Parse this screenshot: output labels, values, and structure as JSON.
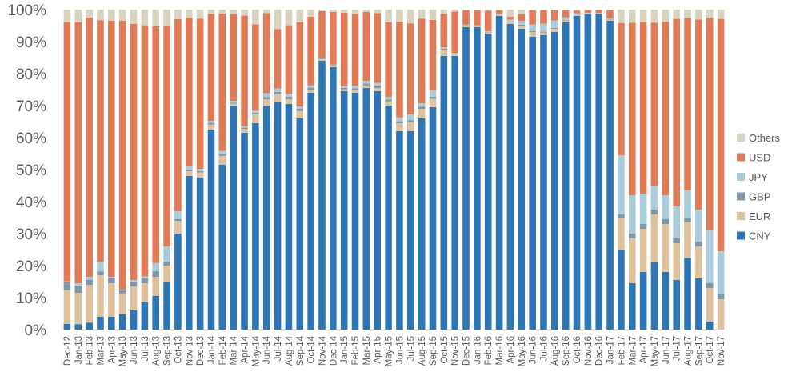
{
  "chart_data": {
    "type": "bar",
    "stacked": true,
    "percent": true,
    "ylim": [
      0,
      100
    ],
    "yticks": [
      "0%",
      "10%",
      "20%",
      "30%",
      "40%",
      "50%",
      "60%",
      "70%",
      "80%",
      "90%",
      "100%"
    ],
    "legend_position": "right",
    "grid": false,
    "categories": [
      "Dec-12",
      "Jan-13",
      "Feb-13",
      "Mar-13",
      "Apr-13",
      "May-13",
      "Jun-13",
      "Jul-13",
      "Aug-13",
      "Sep-13",
      "Oct-13",
      "Nov-13",
      "Dec-13",
      "Jan-14",
      "Feb-14",
      "Mar-14",
      "Apr-14",
      "May-14",
      "Jun-14",
      "Jul-14",
      "Aug-14",
      "Sep-14",
      "Oct-14",
      "Nov-14",
      "Dec-14",
      "Jan-15",
      "Feb-15",
      "Mar-15",
      "Apr-15",
      "May-15",
      "Jun-15",
      "Jul-15",
      "Aug-15",
      "Sep-15",
      "Oct-15",
      "Nov-15",
      "Dec-15",
      "Jan-16",
      "Feb-16",
      "Mar-16",
      "Apr-16",
      "May-16",
      "Jun-16",
      "Jul-16",
      "Aug-16",
      "Sep-16",
      "Oct-16",
      "Nov-16",
      "Dec-16",
      "Jan-17",
      "Feb-17",
      "Mar-17",
      "Apr-17",
      "May-17",
      "Jun-17",
      "Jul-17",
      "Aug-17",
      "Sep-17",
      "Oct-17",
      "Nov-17"
    ],
    "series": [
      {
        "name": "CNY",
        "color": "#2e75b6",
        "values": [
          1.8,
          1.7,
          2.2,
          4,
          4,
          4.8,
          6,
          8.5,
          10.5,
          15,
          30,
          48,
          47.5,
          62.5,
          51.5,
          70,
          61.5,
          64.5,
          70,
          71,
          70.5,
          66,
          74,
          84,
          82,
          74.5,
          74,
          75.5,
          74.5,
          70,
          62,
          62,
          66,
          69.5,
          85.5,
          85.5,
          94.5,
          94.5,
          92.5,
          98,
          95.5,
          94,
          91.5,
          92,
          93,
          96,
          98,
          98.5,
          98.5,
          96.5,
          25,
          14.5,
          18,
          21,
          18,
          15.5,
          22.5,
          16,
          2.5,
          0
        ]
      },
      {
        "name": "EUR",
        "color": "#dfc19b",
        "values": [
          10.5,
          9.8,
          11.8,
          13,
          10.5,
          6.5,
          7.5,
          6,
          6,
          5,
          4,
          1.5,
          1.6,
          1.6,
          2.8,
          0.6,
          1.2,
          2.8,
          2,
          2.5,
          1.5,
          2.3,
          1,
          0.5,
          0.5,
          0.6,
          1,
          0.8,
          1,
          1.3,
          2.5,
          2.8,
          3,
          2.6,
          2,
          0.6,
          0.5,
          0.3,
          0.4,
          0.3,
          0.6,
          1,
          1.5,
          0.8,
          1,
          0.6,
          0.3,
          0.2,
          0.2,
          0.4,
          10,
          14,
          13.5,
          15,
          15,
          11.5,
          11,
          10,
          10.5,
          9.5
        ]
      },
      {
        "name": "GBP",
        "color": "#7f97a8",
        "values": [
          2.5,
          2.3,
          1.6,
          1.2,
          1.6,
          1,
          1.5,
          1.5,
          1.8,
          1.2,
          0.5,
          0.5,
          0.4,
          0.5,
          0.5,
          0.3,
          0.4,
          0.5,
          0.7,
          0.8,
          0.8,
          0.7,
          0.6,
          0.2,
          0.1,
          0.4,
          0.4,
          0.6,
          0.8,
          0.6,
          0.6,
          0.6,
          0.7,
          0.7,
          0.3,
          0.1,
          0.1,
          0.1,
          0.1,
          0.1,
          0.2,
          0.3,
          0.3,
          0.3,
          0.3,
          0.2,
          0.1,
          0.1,
          0.1,
          0.2,
          1,
          1.5,
          1.5,
          1.5,
          1.5,
          1.5,
          1.5,
          1.5,
          1.5,
          1.5
        ]
      },
      {
        "name": "JPY",
        "color": "#a8ccdc",
        "values": [
          0.3,
          0.7,
          0.9,
          3,
          0.4,
          0.2,
          0.5,
          0.6,
          2.5,
          4.8,
          2.5,
          1,
          0.7,
          0.6,
          1,
          0.6,
          0.5,
          0.6,
          1.2,
          1.1,
          0.8,
          0.7,
          0.7,
          0.3,
          0.2,
          0.5,
          0.8,
          0.8,
          0.8,
          0.8,
          1.2,
          1.8,
          1,
          2,
          0.4,
          0.2,
          0.2,
          0.2,
          0.2,
          0.2,
          0.6,
          1.2,
          2,
          2.5,
          2.3,
          0.8,
          0.4,
          0.2,
          0.2,
          0.2,
          18.5,
          12,
          9.5,
          7.5,
          7.5,
          10,
          8.5,
          10,
          16.5,
          13.5
        ]
      },
      {
        "name": "USD",
        "color": "#e07b55",
        "values": [
          81,
          81.5,
          81,
          75.5,
          80,
          84,
          80,
          78.5,
          74,
          69,
          60,
          46.5,
          47,
          33.5,
          43,
          27,
          34.5,
          27,
          25,
          18.5,
          21.5,
          26.3,
          21.5,
          14.5,
          16.5,
          23,
          22.5,
          21.6,
          21.8,
          23.3,
          30,
          28.5,
          26.5,
          22,
          10.5,
          13,
          4.5,
          4.7,
          6.5,
          1.2,
          0.9,
          2,
          4.5,
          4.2,
          3.2,
          2.2,
          0.9,
          0.8,
          0.9,
          2.5,
          41.3,
          53.9,
          53.6,
          50.9,
          54.2,
          58.6,
          53.8,
          59.4,
          66.5,
          72.6
        ]
      },
      {
        "name": "Others",
        "color": "#d8d2c0",
        "values": [
          3.9,
          4,
          2.5,
          3.3,
          3.5,
          3.5,
          4.5,
          4.9,
          5.2,
          5,
          3,
          2.5,
          2.8,
          1.3,
          1.2,
          1.5,
          1.9,
          4.6,
          1.1,
          6.1,
          4.9,
          4,
          2.2,
          0.5,
          0.7,
          1,
          1.3,
          0.7,
          1.1,
          4,
          3.7,
          4.3,
          2.8,
          3.2,
          1.3,
          0.6,
          0.2,
          0.2,
          0.3,
          0.2,
          2.2,
          1.5,
          0.2,
          0.2,
          0.2,
          0.2,
          0.3,
          0.2,
          0.1,
          0.2,
          4.2,
          4.1,
          3.9,
          4.1,
          3.8,
          2.9,
          2.7,
          3.1,
          2.5,
          2.9
        ]
      }
    ]
  }
}
